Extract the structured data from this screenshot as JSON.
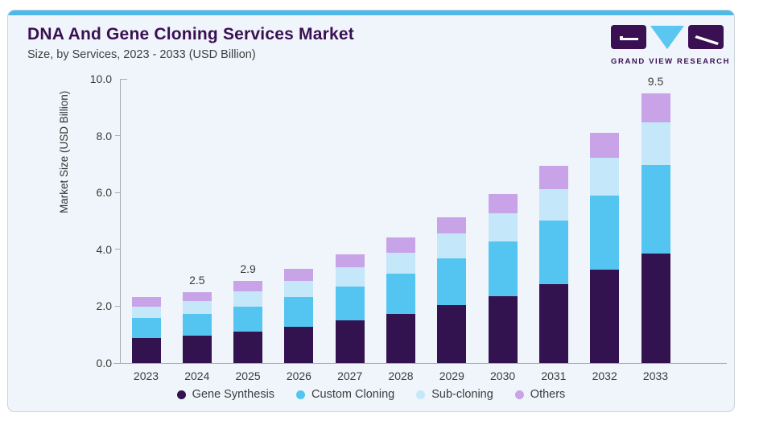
{
  "header": {
    "title": "DNA And Gene Cloning Services Market",
    "subtitle": "Size, by Services, 2023 - 2033 (USD Billion)"
  },
  "logo": {
    "text": "GRAND VIEW RESEARCH"
  },
  "chart_data": {
    "type": "bar",
    "stacked": true,
    "title": "DNA And Gene Cloning Services Market",
    "subtitle": "Size, by Services, 2023 - 2033 (USD Billion)",
    "xlabel": "",
    "ylabel": "Market Size (USD Billion)",
    "ylim": [
      0,
      10
    ],
    "yticks": [
      0,
      2,
      4,
      6,
      8,
      10
    ],
    "ytick_labels": [
      "0.0",
      "2.0",
      "4.0",
      "6.0",
      "8.0",
      "10.0"
    ],
    "grid": false,
    "legend_position": "bottom",
    "categories": [
      "2023",
      "2024",
      "2025",
      "2026",
      "2027",
      "2028",
      "2029",
      "2030",
      "2031",
      "2032",
      "2033"
    ],
    "series": [
      {
        "name": "Gene Synthesis",
        "color": "#331250",
        "values": [
          0.88,
          0.96,
          1.1,
          1.28,
          1.5,
          1.74,
          2.04,
          2.36,
          2.77,
          3.28,
          3.85
        ]
      },
      {
        "name": "Custom Cloning",
        "color": "#54c5f0",
        "values": [
          0.7,
          0.76,
          0.89,
          1.03,
          1.19,
          1.41,
          1.63,
          1.92,
          2.25,
          2.62,
          3.13
        ]
      },
      {
        "name": "Sub-cloning",
        "color": "#c5e7fa",
        "values": [
          0.41,
          0.47,
          0.53,
          0.57,
          0.67,
          0.73,
          0.88,
          0.98,
          1.1,
          1.33,
          1.49
        ]
      },
      {
        "name": "Others",
        "color": "#c9a3e8",
        "values": [
          0.32,
          0.31,
          0.36,
          0.43,
          0.47,
          0.55,
          0.57,
          0.69,
          0.81,
          0.86,
          1.03
        ]
      }
    ],
    "totals": [
      2.31,
      2.5,
      2.88,
      3.31,
      3.83,
      4.43,
      5.12,
      5.95,
      6.93,
      8.09,
      9.5
    ],
    "bar_value_labels": [
      "",
      "2.5",
      "2.9",
      "",
      "",
      "",
      "",
      "",
      "",
      "",
      "9.5"
    ]
  },
  "colors": {
    "card_background": "#eff5fa",
    "top_accent": "#4cb9e9",
    "title_text": "#3a1053",
    "axis": "#a6abb3",
    "tick_text": "#3c3c3c"
  }
}
